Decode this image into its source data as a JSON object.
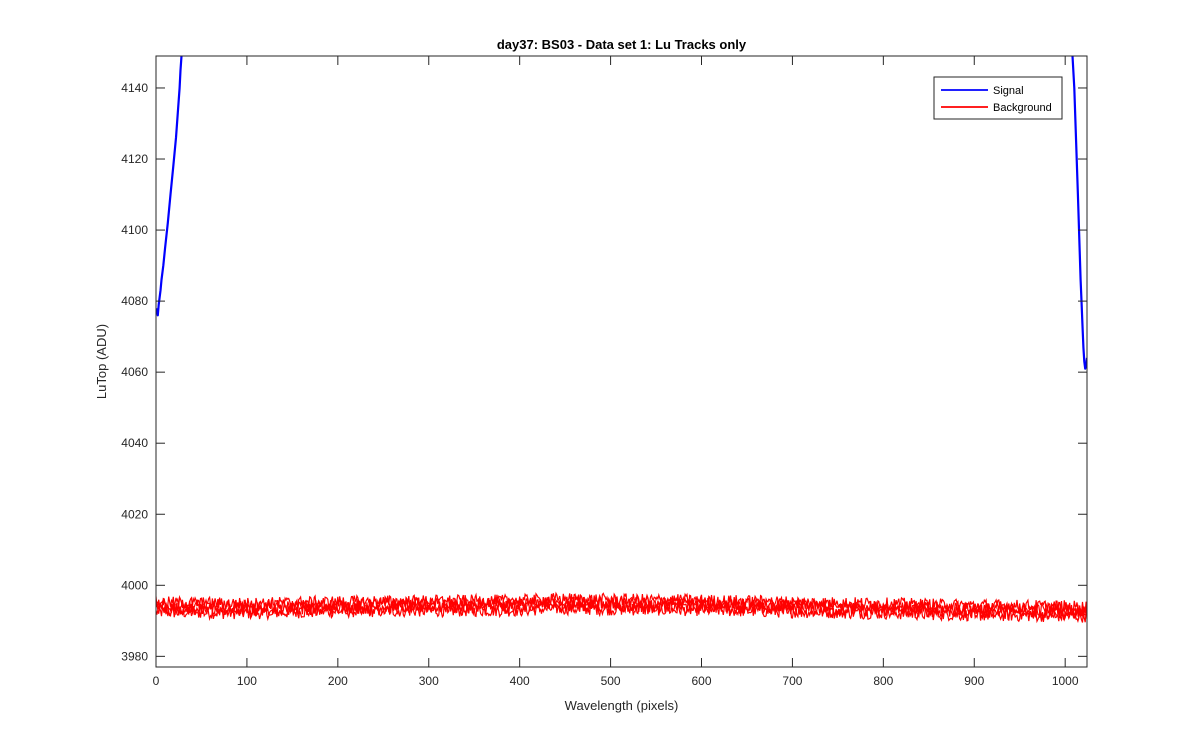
{
  "chart_data": {
    "type": "line",
    "title": "day37: BS03 - Data set 1: Lu Tracks only",
    "xlabel": "Wavelength (pixels)",
    "ylabel": "LuTop (ADU)",
    "xlim": [
      0,
      1024
    ],
    "ylim": [
      3977,
      4149
    ],
    "xticks": [
      0,
      100,
      200,
      300,
      400,
      500,
      600,
      700,
      800,
      900,
      1000
    ],
    "yticks": [
      3980,
      4000,
      4020,
      4040,
      4060,
      4080,
      4100,
      4120,
      4140
    ],
    "grid": false,
    "legend_position": "top-right",
    "series": [
      {
        "name": "Signal",
        "color": "#0000ff",
        "segments": [
          {
            "x": [
              1,
              2,
              3,
              4,
              5,
              6,
              8,
              10,
              13,
              16,
              19,
              22,
              24,
              26,
              27,
              28
            ],
            "y": [
              4078,
              4076,
              4079,
              4081,
              4083,
              4086,
              4090,
              4095,
              4102,
              4110,
              4118,
              4126,
              4133,
              4140,
              4145,
              4149
            ]
          },
          {
            "x": [
              1008,
              1010,
              1012,
              1014,
              1016,
              1017,
              1018,
              1019,
              1020,
              1021,
              1022,
              1023,
              1024
            ],
            "y": [
              4149,
              4140,
              4125,
              4110,
              4094,
              4086,
              4080,
              4073,
              4067,
              4063,
              4061,
              4062,
              4064
            ]
          }
        ]
      },
      {
        "name": "Background",
        "color": "#ff0000",
        "x": [
          0,
          100,
          200,
          300,
          400,
          440,
          500,
          600,
          700,
          800,
          900,
          1000,
          1024
        ],
        "y": [
          3993.8,
          3993.5,
          3994.0,
          3994.2,
          3994.3,
          3994.8,
          3994.6,
          3994.4,
          3993.9,
          3993.5,
          3993.0,
          3992.7,
          3992.6
        ],
        "spread": 3.5,
        "traces": 4
      }
    ]
  }
}
